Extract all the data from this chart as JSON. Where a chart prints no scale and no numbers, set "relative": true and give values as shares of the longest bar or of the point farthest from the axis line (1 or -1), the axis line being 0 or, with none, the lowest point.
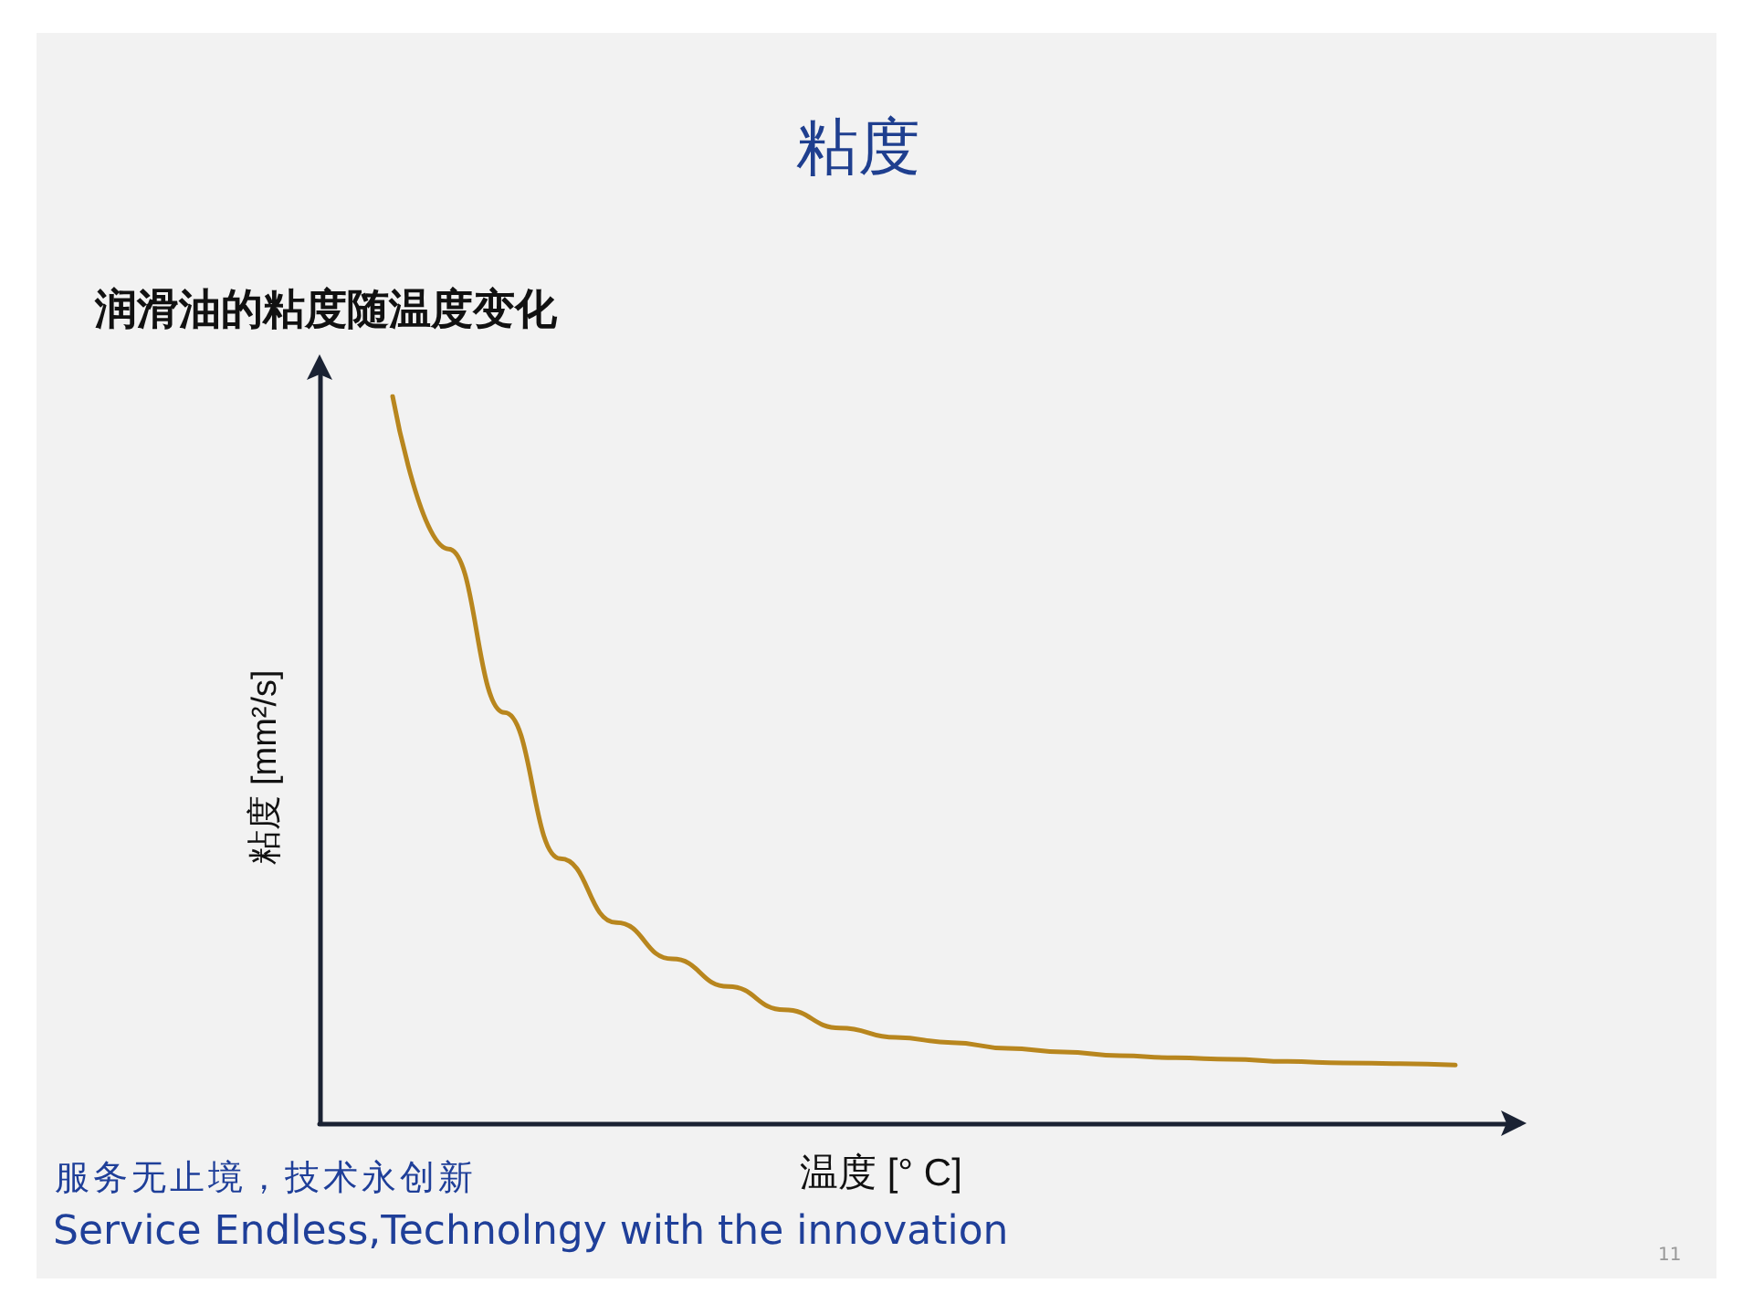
{
  "chart_data": {
    "type": "line",
    "title": "粘度",
    "subtitle": "润滑油的粘度随温度变化",
    "xlabel": "温度 [° C]",
    "ylabel": "粘度 [mm²/s]",
    "relative": true,
    "categories": [
      null,
      null,
      null,
      null,
      null,
      null,
      null,
      null,
      null,
      null,
      null,
      null,
      null,
      null,
      null,
      null,
      null,
      null,
      null,
      null
    ],
    "series": [
      {
        "color": "#b8861e",
        "values": [
          1.0,
          0.79,
          0.565,
          0.364,
          0.276,
          0.226,
          0.188,
          0.156,
          0.131,
          0.118,
          0.111,
          0.103,
          0.098,
          0.093,
          0.09,
          0.088,
          0.085,
          0.083,
          0.082,
          0.08
        ]
      }
    ],
    "annotations": [
      "服务无止境，技术永创新",
      "Service Endless,Technolngy with the innovation",
      "11"
    ],
    "grid": false,
    "marker": "none",
    "line_style": "solid"
  }
}
